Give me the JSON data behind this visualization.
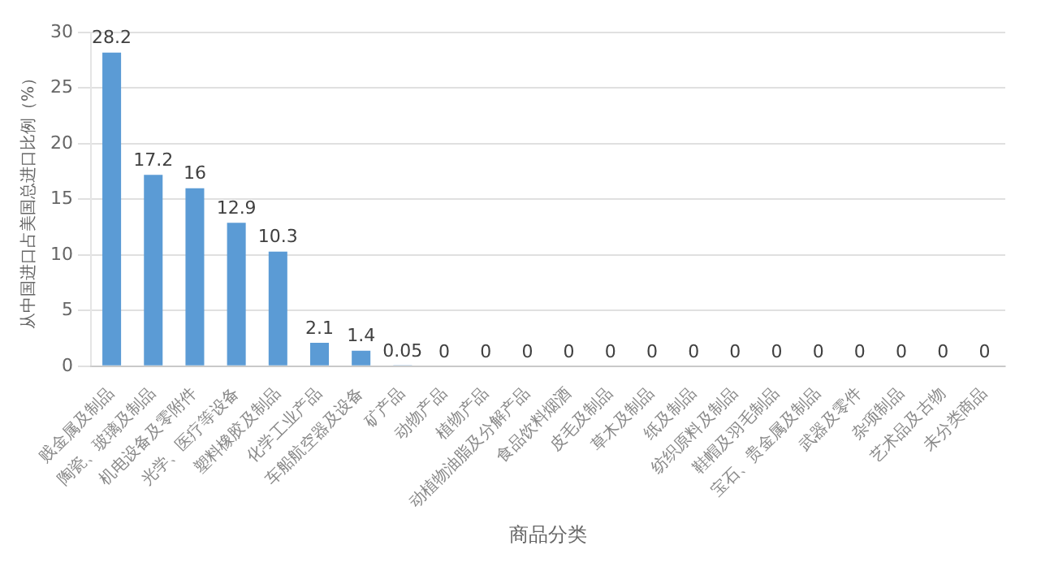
{
  "chart_data": {
    "type": "bar",
    "xlabel": "商品分类",
    "ylabel": "从中国进口占美国总进口比例（%）",
    "categories": [
      "贱金属及制品",
      "陶瓷、玻璃及制品",
      "机电设备及零附件",
      "光学、医疗等设备",
      "塑料橡胶及制品",
      "化学工业产品",
      "车船航空器及设备",
      "矿产品",
      "动物产品",
      "植物产品",
      "动植物油脂及分解产品",
      "食品饮料烟酒",
      "皮毛及制品",
      "草木及制品",
      "纸及制品",
      "纺织原料及制品",
      "鞋帽及羽毛制品",
      "宝石、贵金属及制品",
      "武器及零件",
      "杂项制品",
      "艺术品及古物",
      "未分类商品"
    ],
    "values": [
      28.2,
      17.2,
      16,
      12.9,
      10.3,
      2.1,
      1.4,
      0.05,
      0,
      0,
      0,
      0,
      0,
      0,
      0,
      0,
      0,
      0,
      0,
      0,
      0,
      0
    ],
    "color": "#5b9bd5",
    "ylim": [
      0,
      30
    ],
    "yticks": [
      0,
      5,
      10,
      15,
      20,
      25,
      30
    ],
    "grid": "y",
    "data_labels": true,
    "legend": false
  }
}
